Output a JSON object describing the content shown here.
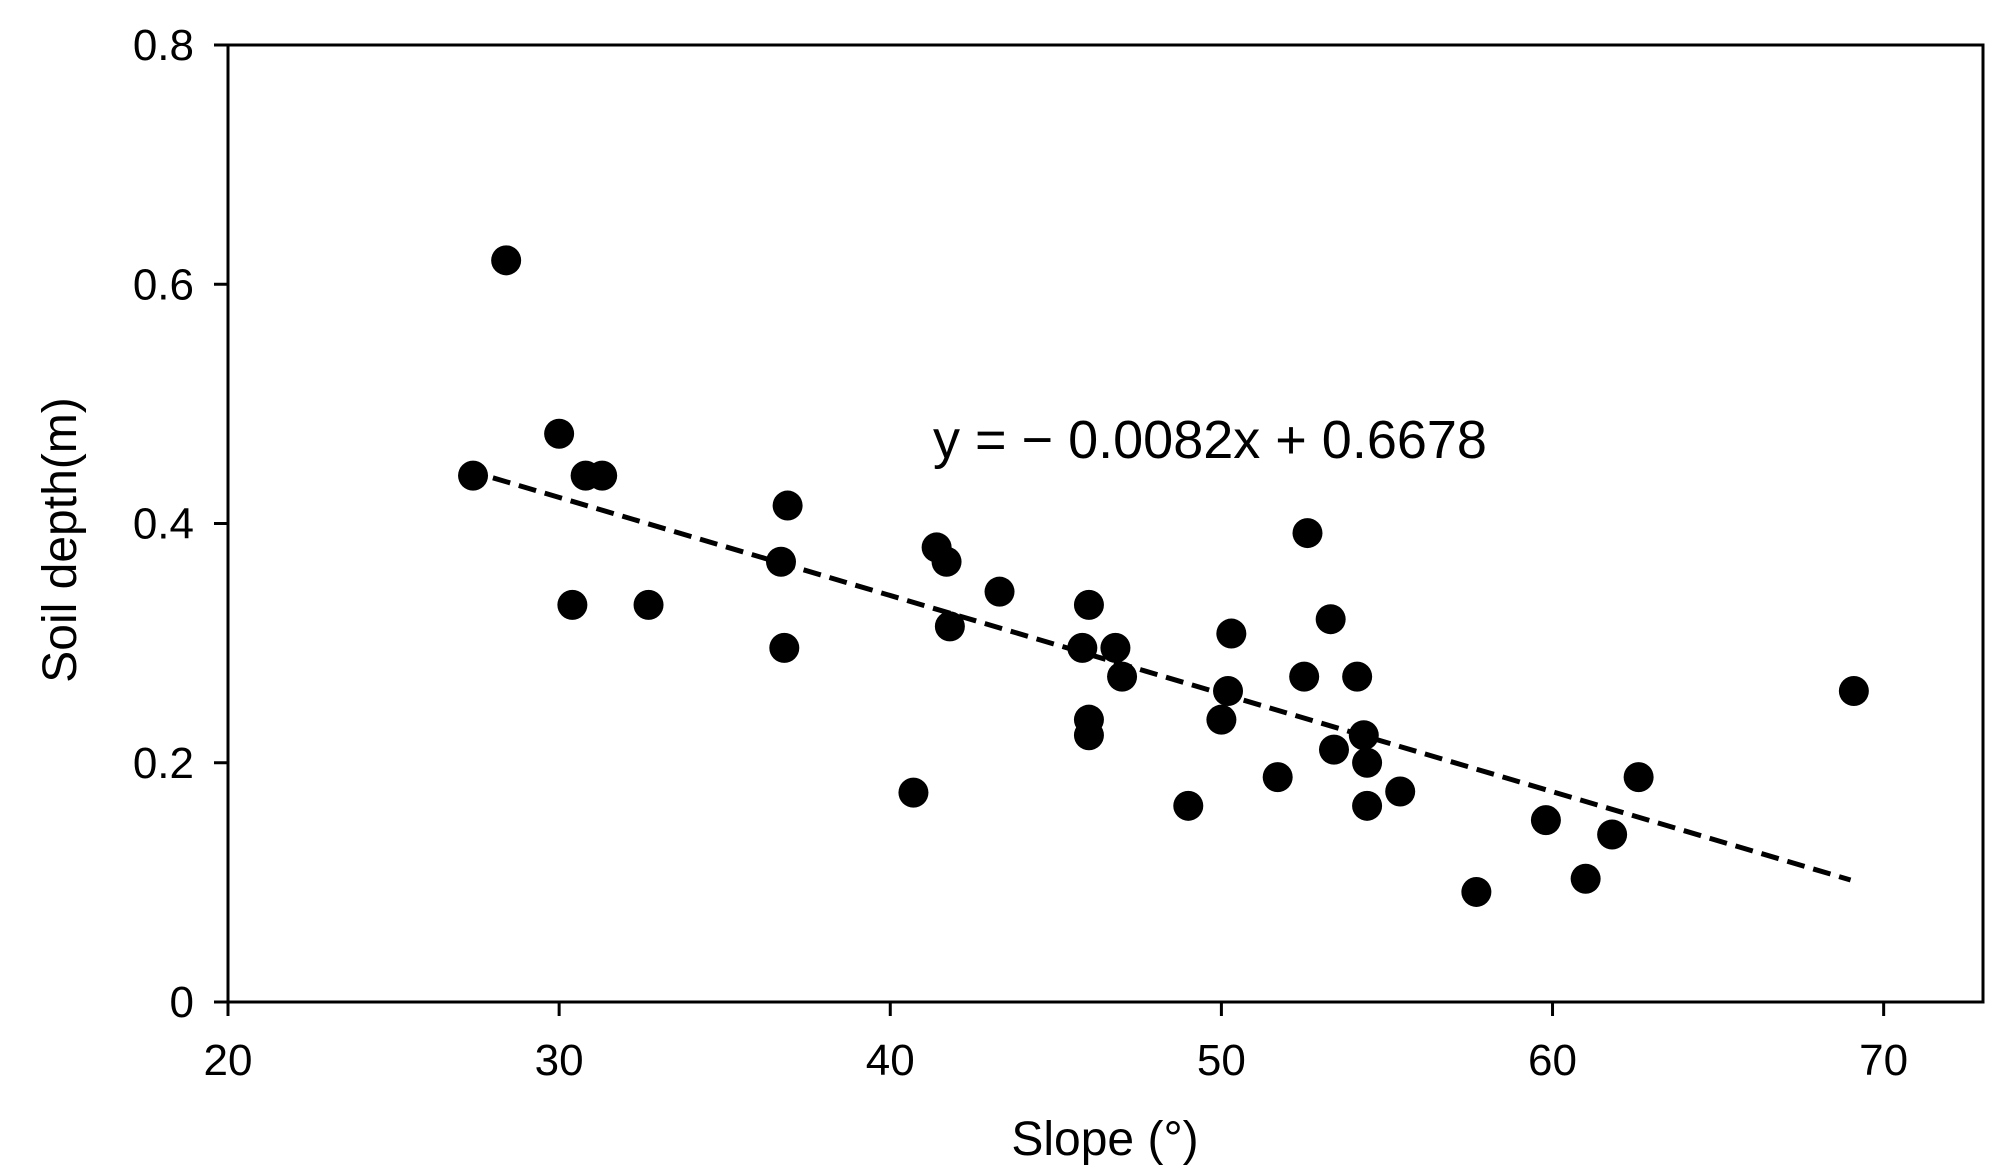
{
  "chart_data": {
    "type": "scatter",
    "title": "",
    "xlabel": "Slope (°)",
    "ylabel": "Soil depth(m)",
    "xlim": [
      20,
      73
    ],
    "ylim": [
      0,
      0.8
    ],
    "x_ticks": [
      "20",
      "30",
      "40",
      "50",
      "60",
      "70"
    ],
    "y_ticks": [
      "0",
      "0.2",
      "0.4",
      "0.6",
      "0.8"
    ],
    "grid": false,
    "legend": "none",
    "annotation": "y = − 0.0082x + 0.6678",
    "trendline": {
      "style": "dashed",
      "slope": -0.0082,
      "intercept": 0.6678,
      "x_range": [
        28,
        69
      ]
    },
    "marker_color": "#000000",
    "series": [
      {
        "x": [
          27.4,
          28.4,
          30.0,
          30.8,
          31.3,
          30.4,
          32.7,
          36.7,
          36.9,
          36.8,
          40.7,
          41.4,
          41.7,
          41.8,
          43.3,
          45.8,
          46.0,
          46.0,
          46.0,
          46.8,
          47.0,
          49.0,
          50.0,
          50.2,
          50.3,
          51.7,
          52.5,
          52.6,
          53.3,
          53.4,
          54.1,
          54.3,
          54.4,
          54.4,
          55.4,
          57.7,
          59.8,
          61.0,
          61.8,
          62.6,
          69.1
        ],
        "y": [
          0.44,
          0.62,
          0.475,
          0.44,
          0.44,
          0.332,
          0.332,
          0.368,
          0.415,
          0.296,
          0.175,
          0.38,
          0.368,
          0.314,
          0.343,
          0.296,
          0.332,
          0.236,
          0.223,
          0.296,
          0.272,
          0.164,
          0.236,
          0.26,
          0.308,
          0.188,
          0.272,
          0.392,
          0.32,
          0.211,
          0.272,
          0.223,
          0.2,
          0.164,
          0.176,
          0.092,
          0.152,
          0.103,
          0.14,
          0.188,
          0.26
        ]
      }
    ]
  }
}
